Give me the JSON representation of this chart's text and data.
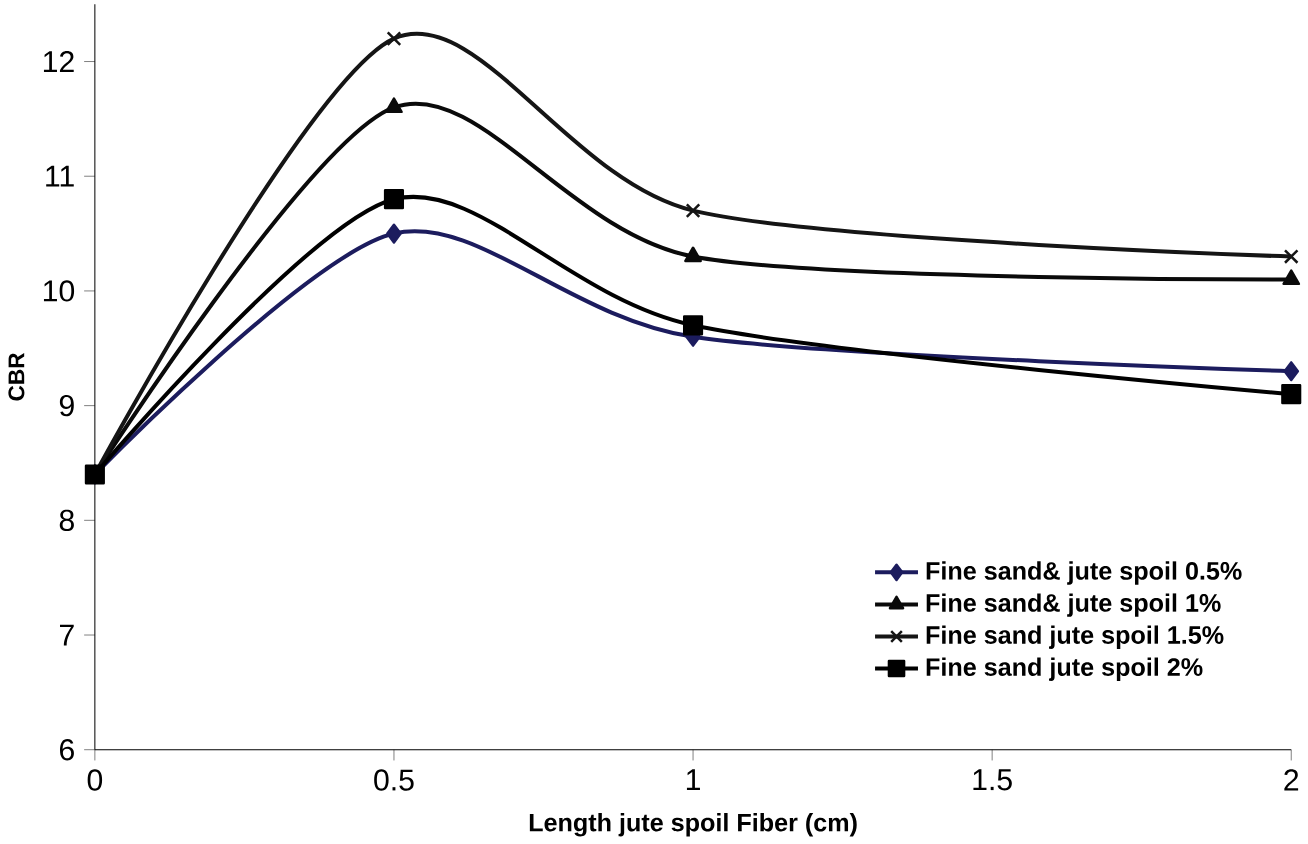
{
  "chart_data": {
    "type": "line",
    "xlabel": "Length jute spoil Fiber (cm)",
    "ylabel": "CBR",
    "xlim": [
      0,
      2
    ],
    "ylim": [
      6,
      12.5
    ],
    "xticks": [
      0,
      0.5,
      1,
      1.5,
      2
    ],
    "yticks": [
      6,
      7,
      8,
      9,
      10,
      11,
      12
    ],
    "grid": false,
    "legend": "bottom right",
    "series": [
      {
        "name": "Fine sand& jute spoil 0.5%",
        "color": "#1c1c5e",
        "marker": "diamond",
        "x": [
          0,
          0.5,
          1,
          2
        ],
        "values": [
          8.4,
          10.5,
          9.6,
          9.3
        ]
      },
      {
        "name": "Fine sand& jute spoil 1%",
        "color": "#0a0a0a",
        "marker": "triangle",
        "x": [
          0,
          0.5,
          1,
          2
        ],
        "values": [
          8.4,
          11.6,
          10.3,
          10.1
        ]
      },
      {
        "name": "Fine sand jute spoil 1.5%",
        "color": "#151515",
        "marker": "cross",
        "x": [
          0,
          0.5,
          1,
          2
        ],
        "values": [
          8.4,
          12.2,
          10.7,
          10.3
        ]
      },
      {
        "name": "Fine sand jute spoil 2%",
        "color": "#000000",
        "marker": "square",
        "x": [
          0,
          0.5,
          1,
          2
        ],
        "values": [
          8.4,
          10.8,
          9.7,
          9.1
        ]
      }
    ]
  }
}
